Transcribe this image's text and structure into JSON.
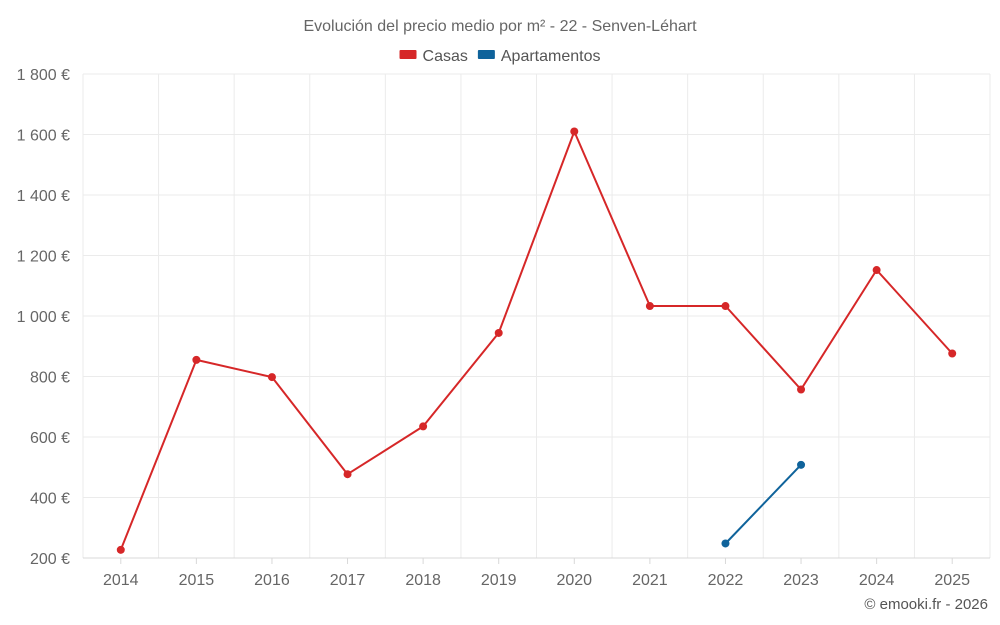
{
  "chart_data": {
    "type": "line",
    "title": "Evolución del precio medio por m² - 22 - Senven-Léhart",
    "categories": [
      "2014",
      "2015",
      "2016",
      "2017",
      "2018",
      "2019",
      "2020",
      "2021",
      "2022",
      "2023",
      "2024",
      "2025"
    ],
    "ylim": [
      200,
      1800
    ],
    "yticks": [
      200,
      400,
      600,
      800,
      1000,
      1200,
      1400,
      1600,
      1800
    ],
    "ytick_labels": [
      "200 €",
      "400 €",
      "600 €",
      "800 €",
      "1 000 €",
      "1 200 €",
      "1 400 €",
      "1 600 €",
      "1 800 €"
    ],
    "grid": true,
    "legend_position": "top-center",
    "series": [
      {
        "name": "Casas",
        "color": "#d62728",
        "values": [
          227,
          855,
          798,
          477,
          635,
          944,
          1610,
          1033,
          1033,
          757,
          1152,
          876
        ]
      },
      {
        "name": "Apartamentos",
        "color": "#0f639b",
        "values": [
          null,
          null,
          null,
          null,
          null,
          null,
          null,
          null,
          248,
          508,
          null,
          null
        ]
      }
    ]
  },
  "credit": "© emooki.fr - 2026"
}
